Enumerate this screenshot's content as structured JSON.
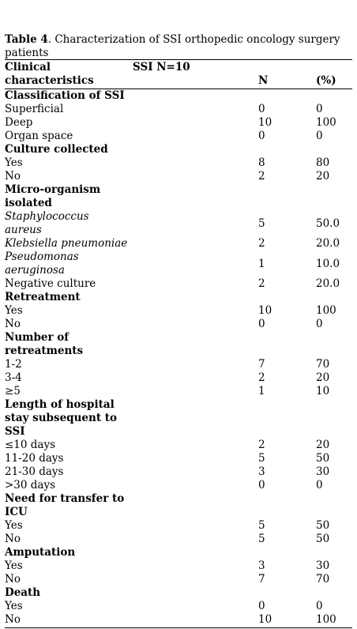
{
  "caption": {
    "label": "Table 4",
    "text": ". Characterization of SSI orthopedic oncology surgery patients"
  },
  "header": {
    "col1": [
      "Clinical",
      "characteristics"
    ],
    "ssi": "SSI N=10",
    "n": "N",
    "pct": "(%)"
  },
  "rows": [
    {
      "label": [
        "Classification of SSI"
      ],
      "section": true
    },
    {
      "label": [
        "Superficial"
      ],
      "n": "0",
      "p": "0"
    },
    {
      "label": [
        "Deep"
      ],
      "n": "10",
      "p": "100"
    },
    {
      "label": [
        "Organ space"
      ],
      "n": "0",
      "p": "0"
    },
    {
      "label": [
        "Culture collected"
      ],
      "section": true
    },
    {
      "label": [
        "Yes"
      ],
      "n": "8",
      "p": "80"
    },
    {
      "label": [
        "No"
      ],
      "n": "2",
      "p": "20"
    },
    {
      "label": [
        "Micro-organism",
        "isolated"
      ],
      "section": true
    },
    {
      "label": [
        "Staphylococcus",
        "aureus"
      ],
      "italic": true,
      "n": "5",
      "p": "50.0"
    },
    {
      "label": [
        "Klebsiella pneumoniae"
      ],
      "italic": true,
      "n": "2",
      "p": "20.0"
    },
    {
      "label": [
        "Pseudomonas",
        "aeruginosa"
      ],
      "italic": true,
      "n": "1",
      "p": "10.0"
    },
    {
      "label": [
        "Negative culture"
      ],
      "n": "2",
      "p": "20.0"
    },
    {
      "label": [
        "Retreatment"
      ],
      "section": true
    },
    {
      "label": [
        "Yes"
      ],
      "n": "10",
      "p": "100"
    },
    {
      "label": [
        "No"
      ],
      "n": "0",
      "p": "0"
    },
    {
      "label": [
        "Number of",
        "retreatments"
      ],
      "section": true
    },
    {
      "label": [
        "1-2"
      ],
      "n": "7",
      "p": "70"
    },
    {
      "label": [
        "3-4"
      ],
      "n": "2",
      "p": "20"
    },
    {
      "label": [
        "≥5"
      ],
      "n": "1",
      "p": "10"
    },
    {
      "label": [
        "Length of hospital",
        "stay subsequent to",
        "SSI"
      ],
      "section": true
    },
    {
      "label": [
        "≤10 days"
      ],
      "n": "2",
      "p": "20"
    },
    {
      "label": [
        "11-20 days"
      ],
      "n": "5",
      "p": "50"
    },
    {
      "label": [
        "21-30 days"
      ],
      "n": "3",
      "p": "30"
    },
    {
      "label": [
        ">30 days"
      ],
      "n": "0",
      "p": "0"
    },
    {
      "label": [
        "Need for transfer to",
        "ICU"
      ],
      "section": true
    },
    {
      "label": [
        "Yes"
      ],
      "n": "5",
      "p": "50"
    },
    {
      "label": [
        "No"
      ],
      "n": "5",
      "p": "50"
    },
    {
      "label": [
        "Amputation"
      ],
      "section": true
    },
    {
      "label": [
        "Yes"
      ],
      "n": "3",
      "p": "30"
    },
    {
      "label": [
        "No"
      ],
      "n": "7",
      "p": "70"
    },
    {
      "label": [
        "Death"
      ],
      "section": true
    },
    {
      "label": [
        "Yes"
      ],
      "n": "0",
      "p": "0"
    },
    {
      "label": [
        "No"
      ],
      "n": "10",
      "p": "100"
    }
  ]
}
